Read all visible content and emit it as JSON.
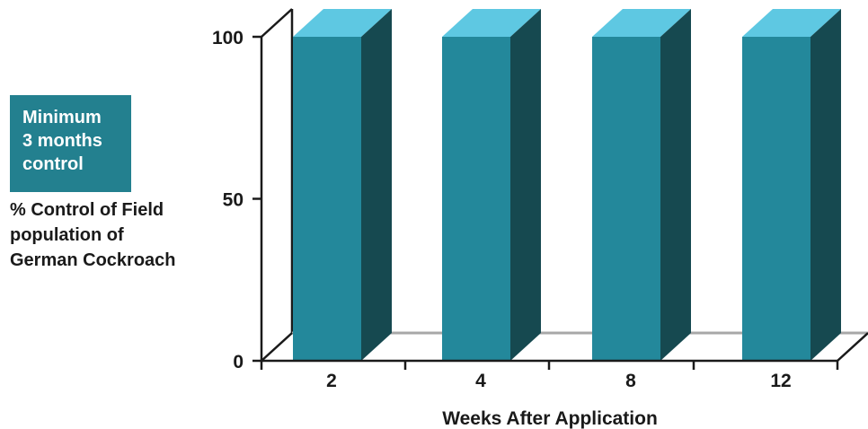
{
  "badge": {
    "lines": [
      "Minimum",
      "3 months",
      "control"
    ],
    "color": "#23808f"
  },
  "ylabel_lines": [
    "% Control of Field",
    "population of",
    "German Cockroach"
  ],
  "colors": {
    "bar_front": "#23889b",
    "bar_top": "#5ec8e2",
    "bar_side": "#164950",
    "axis": "#1a1a1a",
    "floor_back_line": "#a8a8a8"
  },
  "chart_data": {
    "type": "bar",
    "style": "3d",
    "categories": [
      "2",
      "4",
      "8",
      "12"
    ],
    "values": [
      100,
      100,
      100,
      100
    ],
    "xlabel": "Weeks After Application",
    "ylabel": "% Control of Field population of German Cockroach",
    "yticks": [
      0,
      50,
      100
    ],
    "ylim": [
      0,
      100
    ],
    "grid": false,
    "legend": "none"
  }
}
